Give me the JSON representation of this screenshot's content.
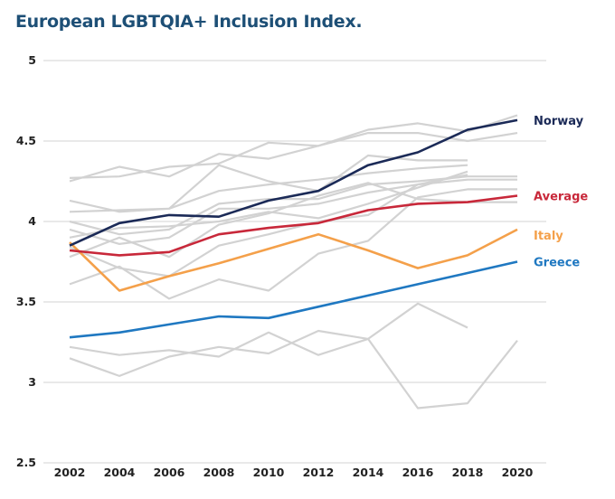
{
  "title": "European LGBTQIA+ Inclusion Index.",
  "chart_data": {
    "type": "line",
    "title": "European LGBTQIA+ Inclusion Index.",
    "xlabel": "",
    "ylabel": "",
    "x": [
      2002,
      2004,
      2006,
      2008,
      2010,
      2012,
      2014,
      2016,
      2018,
      2020
    ],
    "x_tick_labels": [
      "2002",
      "2004",
      "2006",
      "2008",
      "2010",
      "2012",
      "2014",
      "2016",
      "2018",
      "2020"
    ],
    "ylim": [
      2.5,
      5
    ],
    "y_ticks": [
      2.5,
      3,
      3.5,
      4,
      4.5,
      5
    ],
    "y_tick_labels": [
      "2.5",
      "3",
      "3.5",
      "4",
      "4.5",
      "5"
    ],
    "grid": "horizontal",
    "legend": "direct labels at right end of highlighted lines",
    "highlight_series": [
      {
        "name": "Norway",
        "color": "#1b2a57",
        "values": [
          3.85,
          3.99,
          4.04,
          4.03,
          4.13,
          4.19,
          4.35,
          4.43,
          4.57,
          4.63
        ]
      },
      {
        "name": "Average",
        "color": "#c8283a",
        "values": [
          3.82,
          3.79,
          3.81,
          3.92,
          3.96,
          3.99,
          4.07,
          4.11,
          4.12,
          4.16
        ]
      },
      {
        "name": "Italy",
        "color": "#f4a04a",
        "values": [
          3.87,
          3.57,
          3.66,
          3.74,
          3.83,
          3.92,
          3.82,
          3.71,
          3.79,
          3.95
        ]
      },
      {
        "name": "Greece",
        "color": "#1f78c1",
        "values": [
          3.28,
          3.31,
          3.36,
          3.41,
          3.4,
          3.47,
          3.54,
          3.61,
          3.68,
          3.75
        ]
      }
    ],
    "background_series_color": "#d2d2d2",
    "background_series": [
      {
        "values": [
          4.25,
          4.34,
          4.28,
          4.42,
          4.39,
          4.47,
          4.57,
          4.61,
          4.56,
          4.66
        ]
      },
      {
        "values": [
          4.27,
          4.28,
          4.34,
          4.36,
          4.49,
          4.47,
          4.55,
          4.55,
          4.5,
          4.55
        ]
      },
      {
        "values": [
          4.13,
          4.06,
          4.08,
          4.35,
          4.25,
          4.19,
          4.41,
          4.38,
          4.38,
          null
        ]
      },
      {
        "values": [
          4.06,
          4.07,
          4.08,
          4.19,
          4.23,
          4.26,
          4.3,
          4.33,
          4.35,
          null
        ]
      },
      {
        "values": [
          4.0,
          3.92,
          3.95,
          4.11,
          4.14,
          4.14,
          4.23,
          4.25,
          4.28,
          4.28
        ]
      },
      {
        "values": [
          3.95,
          3.86,
          3.9,
          4.08,
          4.08,
          4.11,
          4.18,
          4.23,
          4.26,
          4.26
        ]
      },
      {
        "values": [
          3.9,
          3.96,
          3.97,
          4.0,
          4.06,
          4.02,
          4.11,
          4.21,
          4.31,
          null
        ]
      },
      {
        "values": [
          3.84,
          3.71,
          3.66,
          3.85,
          3.92,
          4.0,
          4.04,
          4.23,
          4.29,
          null
        ]
      },
      {
        "values": [
          3.78,
          3.9,
          3.78,
          3.98,
          4.05,
          4.16,
          4.24,
          4.14,
          4.12,
          4.12
        ]
      },
      {
        "values": [
          3.61,
          3.72,
          3.52,
          3.64,
          3.57,
          3.8,
          3.88,
          4.15,
          4.2,
          4.2
        ]
      },
      {
        "values": [
          3.22,
          3.17,
          3.2,
          3.16,
          3.31,
          3.17,
          3.27,
          2.84,
          2.87,
          3.26
        ]
      },
      {
        "values": [
          3.15,
          3.04,
          3.16,
          3.22,
          3.18,
          3.32,
          3.27,
          3.49,
          3.34,
          null
        ]
      }
    ]
  }
}
